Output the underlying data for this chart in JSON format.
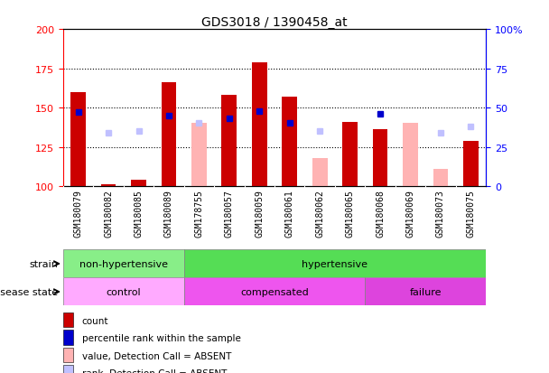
{
  "title": "GDS3018 / 1390458_at",
  "samples": [
    "GSM180079",
    "GSM180082",
    "GSM180085",
    "GSM180089",
    "GSM178755",
    "GSM180057",
    "GSM180059",
    "GSM180061",
    "GSM180062",
    "GSM180065",
    "GSM180068",
    "GSM180069",
    "GSM180073",
    "GSM180075"
  ],
  "count_values": [
    160,
    101,
    104,
    166,
    null,
    158,
    179,
    157,
    null,
    141,
    136,
    null,
    null,
    129
  ],
  "value_absent": [
    null,
    null,
    null,
    null,
    140,
    null,
    null,
    null,
    118,
    null,
    null,
    140,
    111,
    null
  ],
  "percentile_present": [
    147,
    null,
    null,
    145,
    null,
    143,
    148,
    140,
    null,
    null,
    146,
    null,
    null,
    null
  ],
  "rank_absent": [
    null,
    134,
    135,
    null,
    140,
    null,
    null,
    null,
    135,
    null,
    null,
    null,
    134,
    138
  ],
  "ylim_left": [
    100,
    200
  ],
  "ylim_right": [
    0,
    100
  ],
  "yticks_left": [
    100,
    125,
    150,
    175,
    200
  ],
  "yticks_right": [
    0,
    25,
    50,
    75,
    100
  ],
  "color_count": "#cc0000",
  "color_percentile": "#0000cc",
  "color_value_absent": "#ffb3b3",
  "color_rank_absent": "#c0c0ff",
  "color_xticklabel_bg": "#c8c8c8",
  "strain_groups": [
    {
      "label": "non-hypertensive",
      "start": 0,
      "end": 4,
      "color": "#88ee88"
    },
    {
      "label": "hypertensive",
      "start": 4,
      "end": 14,
      "color": "#55dd55"
    }
  ],
  "disease_groups": [
    {
      "label": "control",
      "start": 0,
      "end": 4,
      "color": "#ffaaff"
    },
    {
      "label": "compensated",
      "start": 4,
      "end": 10,
      "color": "#ee55ee"
    },
    {
      "label": "failure",
      "start": 10,
      "end": 14,
      "color": "#dd44dd"
    }
  ],
  "legend_items": [
    {
      "label": "count",
      "color": "#cc0000"
    },
    {
      "label": "percentile rank within the sample",
      "color": "#0000cc"
    },
    {
      "label": "value, Detection Call = ABSENT",
      "color": "#ffb3b3"
    },
    {
      "label": "rank, Detection Call = ABSENT",
      "color": "#c0c0ff"
    }
  ],
  "bar_width": 0.5,
  "baseline": 100
}
